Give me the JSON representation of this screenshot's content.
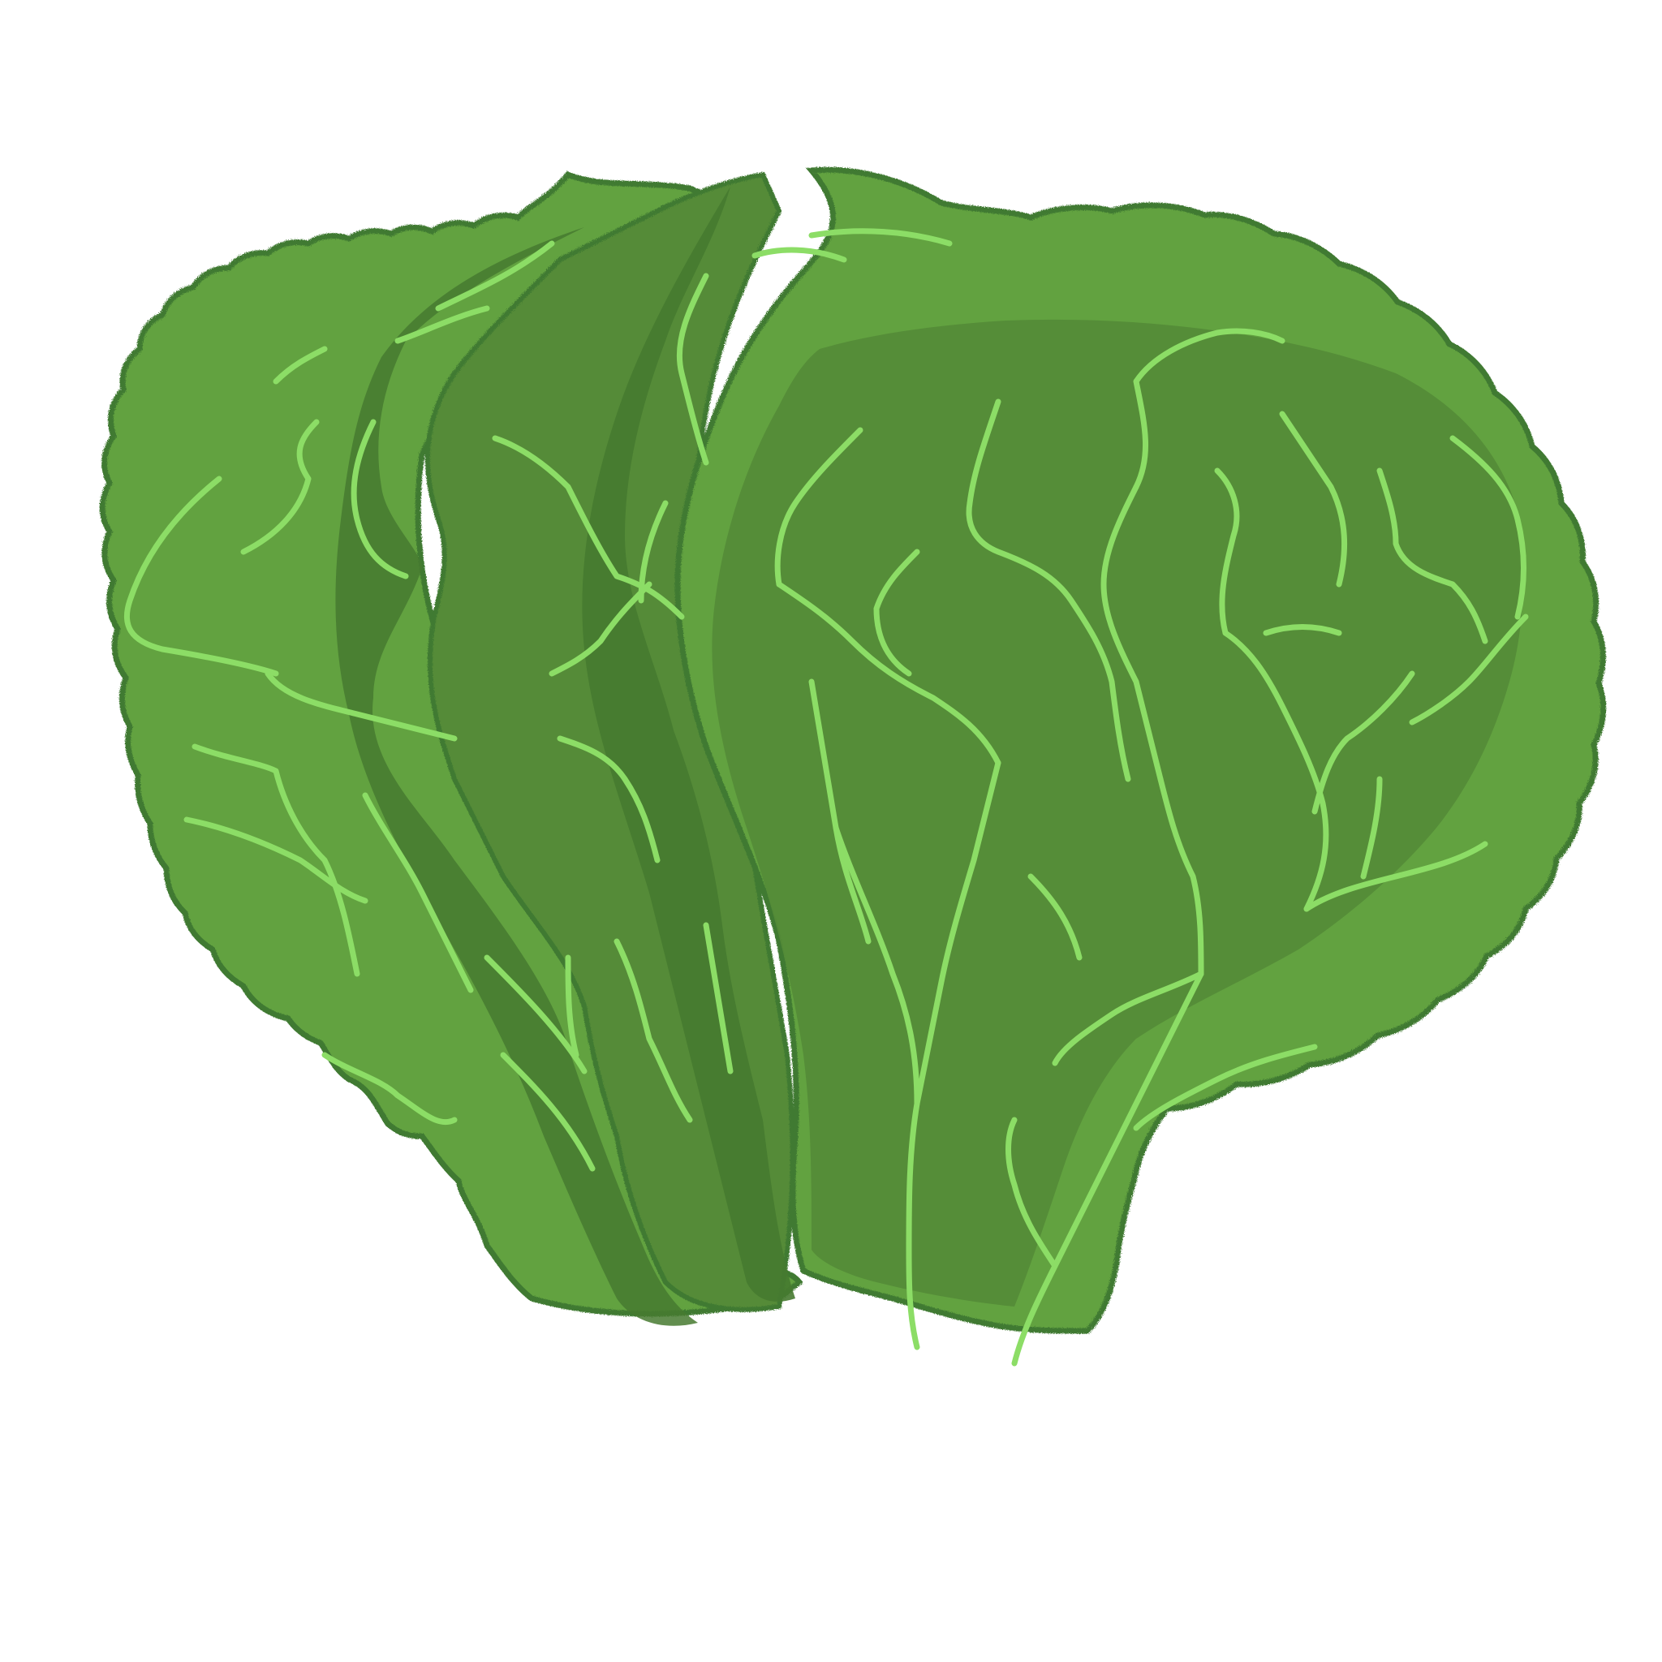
{
  "image": {
    "subject": "lettuce-illustration",
    "background_color": "#ffffff"
  },
  "palette": {
    "outline": "#3f7a32",
    "leaf_light": "#62a23f",
    "leaf_mid": "#548b37",
    "leaf_dark": "#467a30",
    "vein": "#8cdd66"
  }
}
